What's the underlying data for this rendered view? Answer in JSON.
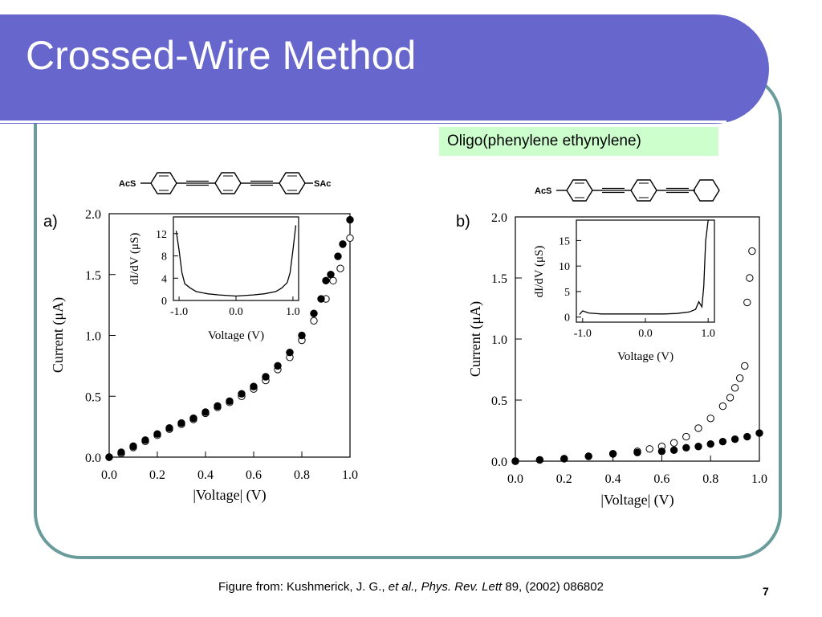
{
  "slide": {
    "title": "Crossed-Wire Method",
    "label_box": "Oligo(phenylene ethynylene)",
    "caption": {
      "prefix": "Figure from: Kushmerick, J. G., ",
      "italic": "et al., Phys. Rev. Lett",
      "suffix": " 89, (2002) 086802"
    },
    "page_number": "7"
  },
  "colors": {
    "title_bar": "#6666cc",
    "frame": "#6b9c9c",
    "label_box": "#ccffcc",
    "data": "#000000"
  },
  "molecules": [
    {
      "left_group": "AcS",
      "right_group": "SAc"
    },
    {
      "left_group": "AcS",
      "right_group": ""
    }
  ],
  "chart_data": [
    {
      "type": "scatter",
      "panel_label": "a)",
      "xlabel": "|Voltage| (V)",
      "ylabel": "Current (μA)",
      "xlim": [
        0,
        1.0
      ],
      "ylim": [
        0,
        2.0
      ],
      "x_ticks": [
        "0.0",
        "0.2",
        "0.4",
        "0.6",
        "0.8",
        "1.0"
      ],
      "y_ticks": [
        "0.0",
        "0.5",
        "1.0",
        "1.5",
        "2.0"
      ],
      "series": [
        {
          "marker": "filled",
          "x": [
            0.0,
            0.05,
            0.1,
            0.15,
            0.2,
            0.25,
            0.3,
            0.35,
            0.4,
            0.45,
            0.5,
            0.55,
            0.6,
            0.65,
            0.7,
            0.75,
            0.8,
            0.85,
            0.88,
            0.9,
            0.92,
            0.95,
            0.97,
            1.0
          ],
          "y": [
            0.0,
            0.04,
            0.09,
            0.14,
            0.19,
            0.24,
            0.28,
            0.32,
            0.37,
            0.42,
            0.46,
            0.52,
            0.58,
            0.66,
            0.75,
            0.86,
            1.0,
            1.18,
            1.3,
            1.45,
            1.5,
            1.65,
            1.75,
            1.95
          ]
        },
        {
          "marker": "open",
          "x": [
            0.0,
            0.05,
            0.1,
            0.15,
            0.2,
            0.25,
            0.3,
            0.35,
            0.4,
            0.45,
            0.5,
            0.55,
            0.6,
            0.65,
            0.7,
            0.75,
            0.8,
            0.85,
            0.9,
            0.93,
            0.96,
            1.0
          ],
          "y": [
            0.0,
            0.03,
            0.08,
            0.13,
            0.18,
            0.23,
            0.27,
            0.31,
            0.36,
            0.41,
            0.45,
            0.5,
            0.56,
            0.63,
            0.72,
            0.82,
            0.96,
            1.12,
            1.3,
            1.45,
            1.55,
            1.8
          ]
        }
      ],
      "inset": {
        "xlabel": "Voltage (V)",
        "ylabel": "dI/dV (μS)",
        "xlim": [
          -1.1,
          1.1
        ],
        "ylim": [
          0,
          15
        ],
        "x_ticks": [
          "-1.0",
          "0.0",
          "1.0"
        ],
        "y_ticks": [
          "0",
          "4",
          "8",
          "12"
        ],
        "x": [
          -1.05,
          -1.0,
          -0.95,
          -0.9,
          -0.8,
          -0.7,
          -0.5,
          -0.3,
          0.0,
          0.3,
          0.5,
          0.7,
          0.8,
          0.9,
          0.95,
          1.0,
          1.05
        ],
        "y": [
          12.5,
          9.0,
          5.0,
          3.0,
          2.2,
          1.6,
          1.2,
          1.0,
          0.8,
          1.0,
          1.2,
          1.6,
          2.2,
          3.2,
          5.0,
          9.0,
          13.5
        ]
      }
    },
    {
      "type": "scatter",
      "panel_label": "b)",
      "xlabel": "|Voltage| (V)",
      "ylabel": "Current (μA)",
      "xlim": [
        0,
        1.0
      ],
      "ylim": [
        0,
        2.0
      ],
      "x_ticks": [
        "0.0",
        "0.2",
        "0.4",
        "0.6",
        "0.8",
        "1.0"
      ],
      "y_ticks": [
        "0.0",
        "0.5",
        "1.0",
        "1.5",
        "2.0"
      ],
      "series": [
        {
          "marker": "filled",
          "x": [
            0.0,
            0.1,
            0.2,
            0.3,
            0.4,
            0.5,
            0.6,
            0.65,
            0.7,
            0.75,
            0.8,
            0.85,
            0.9,
            0.95,
            1.0
          ],
          "y": [
            0.0,
            0.01,
            0.02,
            0.04,
            0.06,
            0.07,
            0.08,
            0.09,
            0.11,
            0.12,
            0.14,
            0.16,
            0.18,
            0.2,
            0.23
          ]
        },
        {
          "marker": "open",
          "x": [
            0.0,
            0.1,
            0.2,
            0.3,
            0.4,
            0.5,
            0.55,
            0.6,
            0.65,
            0.7,
            0.75,
            0.8,
            0.85,
            0.88,
            0.9,
            0.92,
            0.94,
            0.95,
            0.96,
            0.97
          ],
          "y": [
            0.0,
            0.01,
            0.02,
            0.04,
            0.06,
            0.08,
            0.1,
            0.12,
            0.15,
            0.2,
            0.27,
            0.35,
            0.45,
            0.52,
            0.6,
            0.68,
            0.78,
            1.3,
            1.5,
            1.72
          ]
        }
      ],
      "inset": {
        "xlabel": "Voltage (V)",
        "ylabel": "dI/dV (μS)",
        "xlim": [
          -1.1,
          1.1
        ],
        "ylim": [
          -1,
          19
        ],
        "x_ticks": [
          "-1.0",
          "0.0",
          "1.0"
        ],
        "y_ticks": [
          "0",
          "5",
          "10",
          "15"
        ],
        "x": [
          -1.05,
          -1.0,
          -0.9,
          -0.7,
          -0.5,
          -0.3,
          0.0,
          0.3,
          0.5,
          0.7,
          0.8,
          0.85,
          0.9,
          0.93,
          0.96,
          1.0
        ],
        "y": [
          0.5,
          1.2,
          0.8,
          0.6,
          0.6,
          0.6,
          0.6,
          0.6,
          0.7,
          1.0,
          1.5,
          3.0,
          2.0,
          6.0,
          15.0,
          19.0
        ]
      }
    }
  ]
}
